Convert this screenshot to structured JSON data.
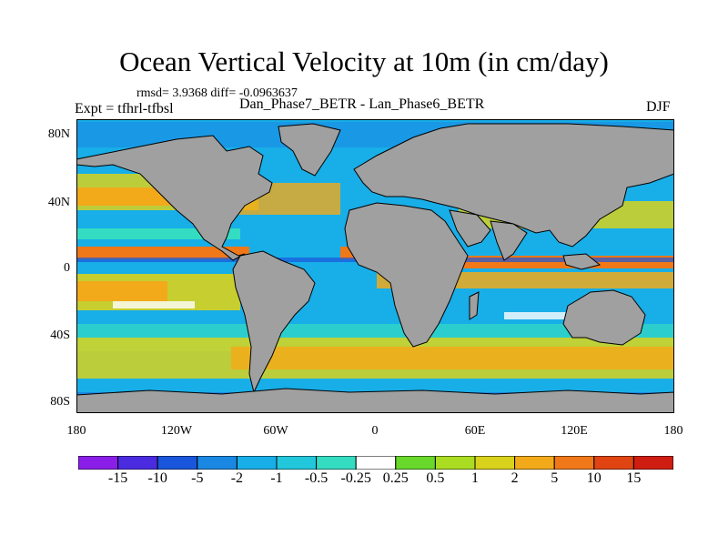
{
  "title": "Ocean Vertical Velocity at 10m (in cm/day)",
  "stats_line": "rmsd= 3.9368 diff= -0.0963637",
  "expt_line": "Expt = tfhrl-tfbsl",
  "experiment_name": "Dan_Phase7_BETR - Lan_Phase6_BETR",
  "season": "DJF",
  "lat_labels": [
    "80N",
    "40N",
    "0",
    "40S",
    "80S"
  ],
  "lon_labels": [
    "180",
    "120W",
    "60W",
    "0",
    "60E",
    "120E",
    "180"
  ],
  "colorbar": {
    "labels": [
      "-15",
      "-10",
      "-5",
      "-2",
      "-1",
      "-0.5",
      "-0.25",
      "0.25",
      "0.5",
      "1",
      "2",
      "5",
      "10",
      "15"
    ],
    "colors": [
      "#8a1ee8",
      "#4a2be0",
      "#1a56dc",
      "#1a88e2",
      "#18aee8",
      "#22c7dc",
      "#34dcc2",
      "#ffffff",
      "#68d82a",
      "#aadc22",
      "#d9d21c",
      "#f2aa1a",
      "#f07818",
      "#e04412",
      "#d01d12"
    ]
  },
  "land_color": "#a0a0a0"
}
